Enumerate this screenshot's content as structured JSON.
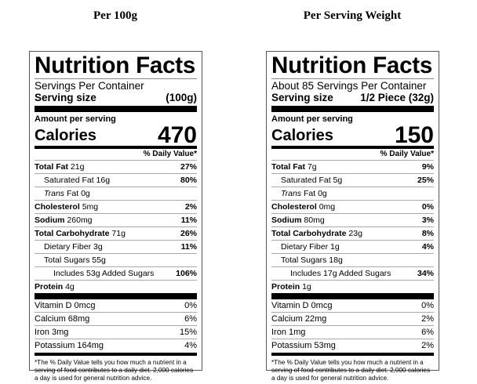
{
  "headings": [
    "Per 100g",
    "Per Serving Weight"
  ],
  "labels": [
    {
      "title": "Nutrition Facts",
      "servings": "Servings Per Container",
      "serving_size_label": "Serving size",
      "serving_size": "(100g)",
      "amount_per_serving": "Amount per serving",
      "calories_label": "Calories",
      "calories": "470",
      "dv_header": "% Daily Value*",
      "nutrients": [
        {
          "name": "Total Fat",
          "amount": "21g",
          "dv": "27%"
        },
        {
          "name": "Saturated Fat",
          "amount": "16g",
          "dv": "80%"
        },
        {
          "name": "Trans",
          "amount": "Fat 0g",
          "dv": ""
        },
        {
          "name": "Cholesterol",
          "amount": "5mg",
          "dv": "2%"
        },
        {
          "name": "Sodium",
          "amount": "260mg",
          "dv": "11%"
        },
        {
          "name": "Total Carbohydrate",
          "amount": "71g",
          "dv": "26%"
        },
        {
          "name": "Dietary Fiber",
          "amount": "3g",
          "dv": "11%"
        },
        {
          "name": "Total Sugars",
          "amount": "55g",
          "dv": ""
        },
        {
          "name": "Includes 53g Added Sugars",
          "amount": "",
          "dv": "106%"
        },
        {
          "name": "Protein",
          "amount": "4g",
          "dv": ""
        }
      ],
      "vitamins": [
        {
          "name": "Vitamin D 0mcg",
          "dv": "0%"
        },
        {
          "name": "Calcium 68mg",
          "dv": "6%"
        },
        {
          "name": "Iron 3mg",
          "dv": "15%"
        },
        {
          "name": "Potassium 164mg",
          "dv": "4%"
        }
      ],
      "footnote": "*The % Daily Value tells you how much a nutrient in a serving of food contributes to a daily diet. 2,000 calories a day is used for general nutrition advice."
    },
    {
      "title": "Nutrition Facts",
      "servings": "About 85 Servings Per Container",
      "serving_size_label": "Serving size",
      "serving_size": "1/2 Piece (32g)",
      "amount_per_serving": "Amount per serving",
      "calories_label": "Calories",
      "calories": "150",
      "dv_header": "% Daily Value*",
      "nutrients": [
        {
          "name": "Total Fat",
          "amount": "7g",
          "dv": "9%"
        },
        {
          "name": "Saturated Fat",
          "amount": "5g",
          "dv": "25%"
        },
        {
          "name": "Trans",
          "amount": "Fat 0g",
          "dv": ""
        },
        {
          "name": "Cholesterol",
          "amount": "0mg",
          "dv": "0%"
        },
        {
          "name": "Sodium",
          "amount": "80mg",
          "dv": "3%"
        },
        {
          "name": "Total Carbohydrate",
          "amount": "23g",
          "dv": "8%"
        },
        {
          "name": "Dietary Fiber",
          "amount": "1g",
          "dv": "4%"
        },
        {
          "name": "Total Sugars",
          "amount": "18g",
          "dv": ""
        },
        {
          "name": "Includes 17g Added Sugars",
          "amount": "",
          "dv": "34%"
        },
        {
          "name": "Protein",
          "amount": "1g",
          "dv": ""
        }
      ],
      "vitamins": [
        {
          "name": "Vitamin D 0mcg",
          "dv": "0%"
        },
        {
          "name": "Calcium 22mg",
          "dv": "2%"
        },
        {
          "name": "Iron 1mg",
          "dv": "6%"
        },
        {
          "name": "Potassium 53mg",
          "dv": "2%"
        }
      ],
      "footnote": "*The % Daily Value tells you how much a nutrient in a serving of food contributes to a daily diet. 2,000 calories a day is used for general nutrition advice."
    }
  ]
}
